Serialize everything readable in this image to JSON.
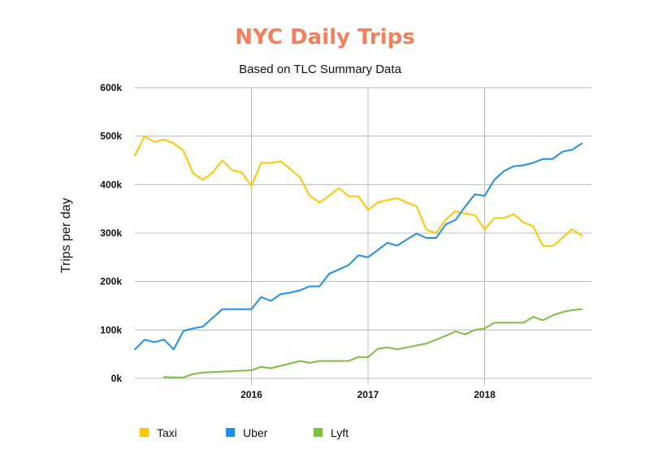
{
  "chart_data": {
    "type": "line",
    "title": "NYC Daily Trips",
    "subtitle": "Based on TLC Summary Data",
    "xlabel": "",
    "ylabel": "Trips per day",
    "x_ticks": [
      "2016",
      "2017",
      "2018"
    ],
    "y_ticks": [
      "0k",
      "100k",
      "200k",
      "300k",
      "400k",
      "500k",
      "600k"
    ],
    "ylim": [
      0,
      600000
    ],
    "xlim": [
      "2015-01",
      "2018-12"
    ],
    "grid": "horizontal lines and yearly vertical lines",
    "legend_position": "bottom-left",
    "colors": {
      "title": "#f47f5b",
      "grid": "#bbbbbb",
      "Taxi": "#ffc700",
      "Uber": "#1e90ea",
      "Lyft": "#7cbf3c"
    },
    "series": [
      {
        "name": "Taxi",
        "x": [
          "2015-01",
          "2015-02",
          "2015-03",
          "2015-04",
          "2015-05",
          "2015-06",
          "2015-07",
          "2015-08",
          "2015-09",
          "2015-10",
          "2015-11",
          "2015-12",
          "2016-01",
          "2016-02",
          "2016-03",
          "2016-04",
          "2016-05",
          "2016-06",
          "2016-07",
          "2016-08",
          "2016-09",
          "2016-10",
          "2016-11",
          "2016-12",
          "2017-01",
          "2017-02",
          "2017-03",
          "2017-04",
          "2017-05",
          "2017-06",
          "2017-07",
          "2017-08",
          "2017-09",
          "2017-10",
          "2017-11",
          "2017-12",
          "2018-01",
          "2018-02",
          "2018-03",
          "2018-04",
          "2018-05",
          "2018-06",
          "2018-07",
          "2018-08",
          "2018-09",
          "2018-10",
          "2018-11",
          "2018-12"
        ],
        "values": [
          460000,
          500000,
          488000,
          493000,
          485000,
          470000,
          423000,
          410000,
          425000,
          450000,
          430000,
          425000,
          397000,
          445000,
          445000,
          448000,
          432000,
          415000,
          377000,
          363000,
          377000,
          393000,
          376000,
          376000,
          348000,
          363000,
          368000,
          372000,
          363000,
          355000,
          307000,
          300000,
          328000,
          345000,
          340000,
          337000,
          308000,
          331000,
          331000,
          339000,
          322000,
          314000,
          273000,
          273000,
          290000,
          308000,
          295000,
          null
        ]
      },
      {
        "name": "Uber",
        "x": [
          "2015-01",
          "2015-02",
          "2015-03",
          "2015-04",
          "2015-05",
          "2015-06",
          "2015-07",
          "2015-08",
          "2015-09",
          "2015-10",
          "2015-11",
          "2015-12",
          "2016-01",
          "2016-02",
          "2016-03",
          "2016-04",
          "2016-05",
          "2016-06",
          "2016-07",
          "2016-08",
          "2016-09",
          "2016-10",
          "2016-11",
          "2016-12",
          "2017-01",
          "2017-02",
          "2017-03",
          "2017-04",
          "2017-05",
          "2017-06",
          "2017-07",
          "2017-08",
          "2017-09",
          "2017-10",
          "2017-11",
          "2017-12",
          "2018-01",
          "2018-02",
          "2018-03",
          "2018-04",
          "2018-05",
          "2018-06",
          "2018-07",
          "2018-08",
          "2018-09",
          "2018-10",
          "2018-11",
          "2018-12"
        ],
        "values": [
          60000,
          80000,
          75000,
          80000,
          60000,
          98000,
          103000,
          107000,
          125000,
          143000,
          143000,
          143000,
          143000,
          168000,
          160000,
          174000,
          177000,
          182000,
          190000,
          190000,
          216000,
          225000,
          234000,
          254000,
          250000,
          265000,
          280000,
          274000,
          287000,
          299000,
          290000,
          290000,
          318000,
          327000,
          355000,
          380000,
          377000,
          410000,
          428000,
          438000,
          440000,
          445000,
          453000,
          453000,
          468000,
          472000,
          485000,
          null
        ]
      },
      {
        "name": "Lyft",
        "x": [
          "2015-04",
          "2015-05",
          "2015-06",
          "2015-07",
          "2015-08",
          "2015-09",
          "2015-10",
          "2015-11",
          "2015-12",
          "2016-01",
          "2016-02",
          "2016-03",
          "2016-04",
          "2016-05",
          "2016-06",
          "2016-07",
          "2016-08",
          "2016-09",
          "2016-10",
          "2016-11",
          "2016-12",
          "2017-01",
          "2017-02",
          "2017-03",
          "2017-04",
          "2017-05",
          "2017-06",
          "2017-07",
          "2017-08",
          "2017-09",
          "2017-10",
          "2017-11",
          "2017-12",
          "2018-01",
          "2018-02",
          "2018-03",
          "2018-04",
          "2018-05",
          "2018-06",
          "2018-07",
          "2018-08",
          "2018-09",
          "2018-10",
          "2018-11",
          "2018-12"
        ],
        "values": [
          3000,
          2000,
          2000,
          9000,
          12000,
          13000,
          14000,
          15000,
          16000,
          17000,
          24000,
          21000,
          26000,
          31000,
          36000,
          32000,
          36000,
          36000,
          36000,
          36000,
          44000,
          44000,
          61000,
          64000,
          60000,
          64000,
          68000,
          72000,
          80000,
          88000,
          97000,
          91000,
          100000,
          103000,
          115000,
          115000,
          115000,
          115000,
          127000,
          120000,
          130000,
          137000,
          141000,
          143000,
          null
        ]
      }
    ]
  }
}
